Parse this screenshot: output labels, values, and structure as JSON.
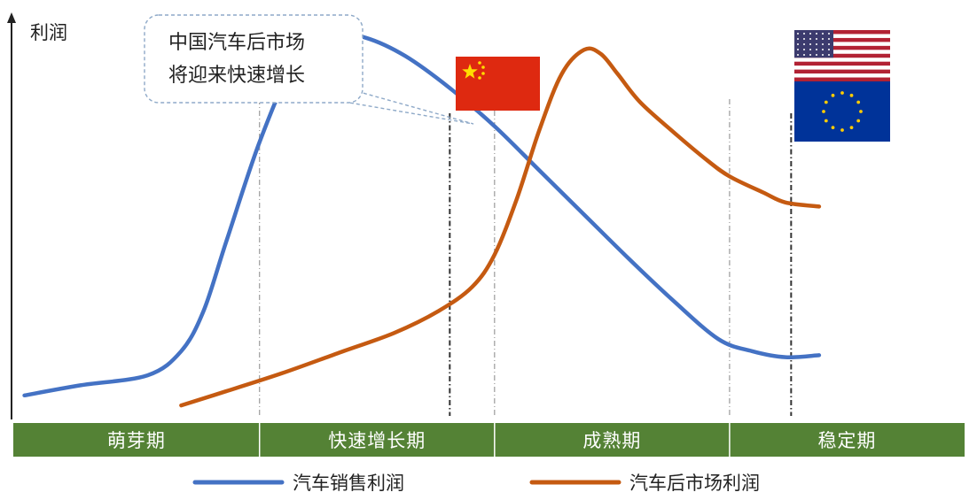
{
  "chart_data": {
    "type": "line",
    "title": "",
    "ylabel": "利润",
    "xlabel": "",
    "grid": false,
    "legend_position": "bottom",
    "annotation": {
      "lines": [
        "中国汽车后市场",
        "将迎来快速增长"
      ],
      "marker": "china-flag"
    },
    "phases": [
      {
        "label": "萌芽期",
        "span": [
          0,
          22
        ]
      },
      {
        "label": "快速增长期",
        "span": [
          22,
          43
        ]
      },
      {
        "label": "成熟期",
        "span": [
          43,
          64
        ]
      },
      {
        "label": "稳定期",
        "span": [
          64,
          85
        ]
      }
    ],
    "markers": [
      {
        "name": "china",
        "x": 39,
        "flags": [
          "china-flag"
        ]
      },
      {
        "name": "us-eu",
        "x": 69.5,
        "flags": [
          "usa-flag",
          "eu-flag"
        ]
      }
    ],
    "xlim": [
      0,
      85
    ],
    "ylim": [
      0,
      100
    ],
    "series": [
      {
        "name": "汽车销售利润",
        "color": "#4472C4",
        "x": [
          1,
          6,
          12,
          15,
          17,
          19,
          22,
          25,
          28,
          31.5,
          35,
          39,
          43,
          47,
          51,
          55,
          59,
          63,
          66,
          69,
          72
        ],
        "y": [
          6,
          8.5,
          11,
          17,
          27,
          44,
          69,
          88,
          96.5,
          95,
          90.5,
          82.5,
          73,
          62,
          51,
          40,
          29.5,
          20,
          17,
          15.5,
          16
        ]
      },
      {
        "name": "汽车后市场利润",
        "color": "#C55A11",
        "x": [
          15,
          19,
          24,
          29,
          34,
          38,
          41,
          43,
          45,
          47,
          49,
          51,
          52.5,
          54,
          56,
          59,
          62,
          64,
          67,
          69,
          72
        ],
        "y": [
          3.5,
          7,
          11.5,
          16.5,
          21.5,
          27,
          33,
          41,
          55,
          72,
          86,
          92,
          91,
          86,
          79,
          71.5,
          64.5,
          60.5,
          56.5,
          54,
          53
        ]
      }
    ]
  },
  "colors": {
    "phase_band": "#548235",
    "axis": "#222222",
    "callout_border": "#8EA9C8",
    "vline_light": "#9a9a9a",
    "vline_dark": "#333333"
  }
}
